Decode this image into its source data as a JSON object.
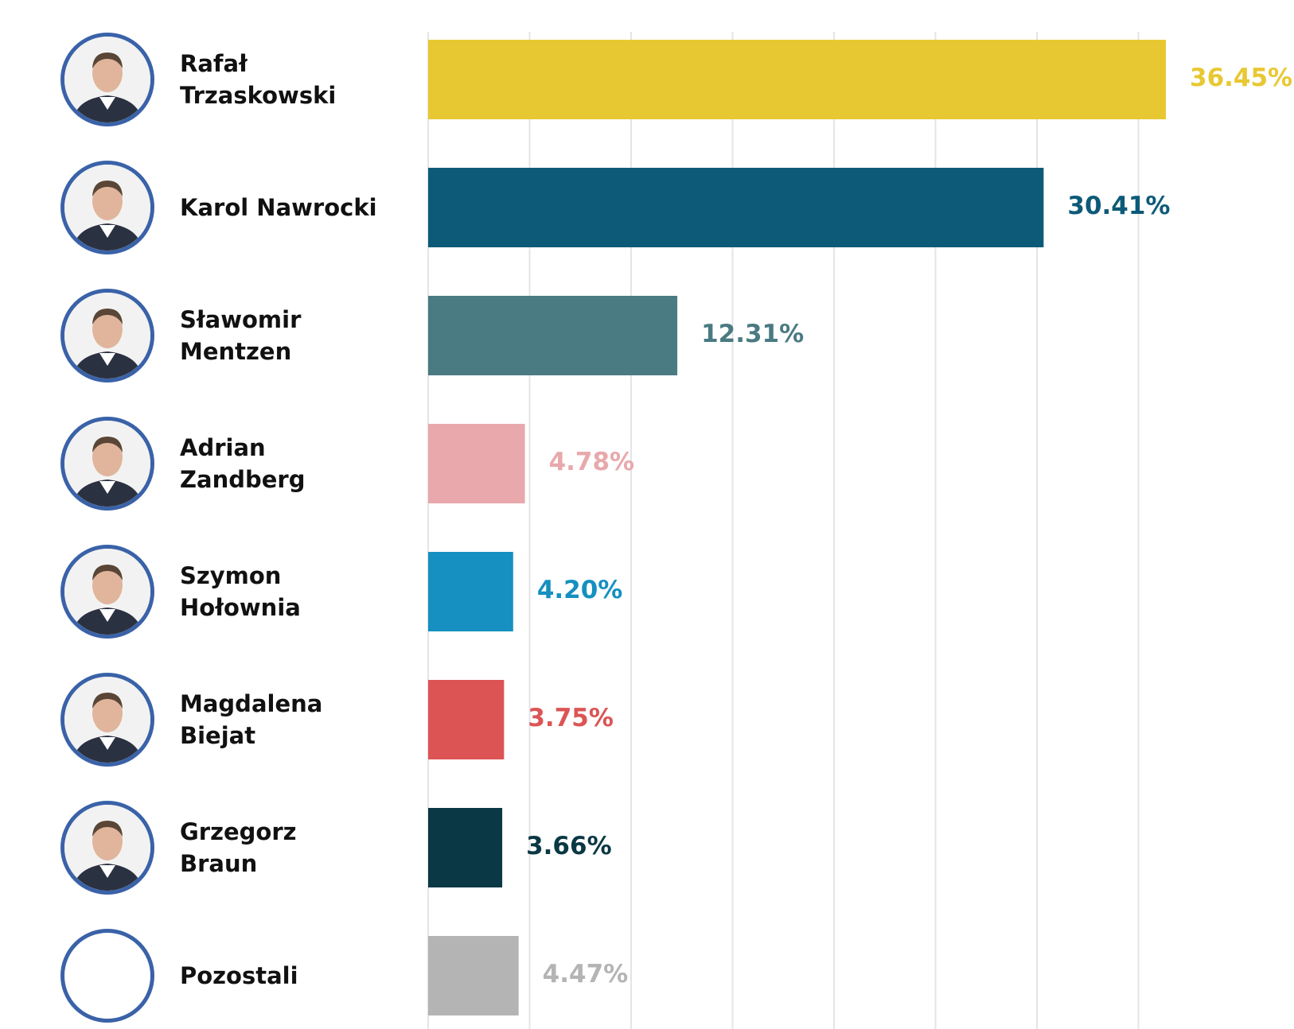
{
  "chart_data": {
    "type": "bar",
    "orientation": "horizontal",
    "categories": [
      "Rafał\nTrzaskowski",
      "Karol Nawrocki",
      "Sławomir\nMentzen",
      "Adrian\nZandberg",
      "Szymon\nHołownia",
      "Magdalena\nBiejat",
      "Grzegorz\nBraun",
      "Pozostali"
    ],
    "values": [
      36.45,
      30.41,
      12.31,
      4.78,
      4.2,
      3.75,
      3.66,
      4.47
    ],
    "value_labels": [
      "36.45%",
      "30.41%",
      "12.31%",
      "4.78%",
      "4.20%",
      "3.75%",
      "3.66%",
      "4.47%"
    ],
    "colors": [
      "#e8c832",
      "#0d5a78",
      "#4a7a82",
      "#e8a8ac",
      "#1590c0",
      "#dc5454",
      "#0a3844",
      "#b4b4b4"
    ],
    "avatars": [
      "person-photo",
      "person-photo",
      "person-photo",
      "person-photo",
      "person-photo",
      "person-photo",
      "person-photo",
      "empty"
    ],
    "xlim": [
      0,
      36.45
    ],
    "grid": true,
    "title": "",
    "xlabel": "",
    "ylabel": ""
  }
}
